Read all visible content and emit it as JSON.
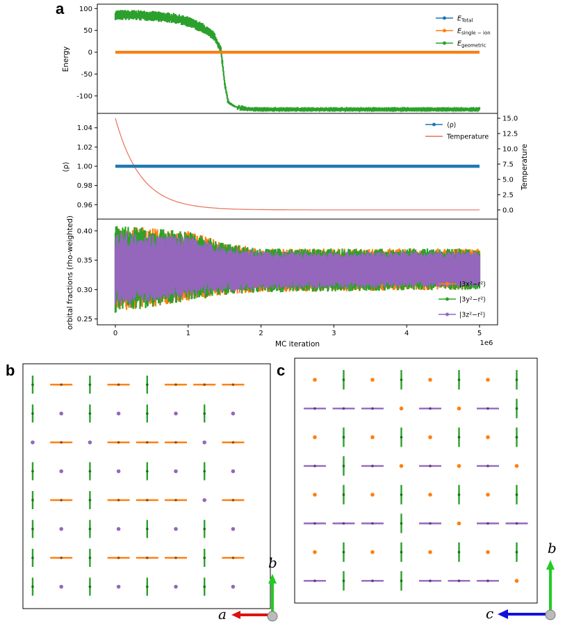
{
  "colors": {
    "total": "#1f77b4",
    "single_ion": "#ff7f0e",
    "geometric": "#2ca02c",
    "purple": "#9467bd",
    "temperature": "#e8705a",
    "axis_red": "#dd1111",
    "axis_green": "#22cc22",
    "axis_blue": "#1111dd"
  },
  "panels": {
    "a": "a",
    "b": "b",
    "c": "c"
  },
  "chart_data": [
    {
      "id": "energy",
      "type": "line",
      "ylabel": "Energy",
      "xlim": [
        0,
        5000000
      ],
      "ylim": [
        -140,
        110
      ],
      "yticks": [
        100,
        50,
        0,
        -50,
        -100
      ],
      "legend": "top-right",
      "series": [
        {
          "name": "E_Total",
          "label_main": "E",
          "label_sub": "Total",
          "color": "#1f77b4",
          "values": "constant 0"
        },
        {
          "name": "E_single-ion",
          "label_main": "E",
          "label_sub": "single − ion",
          "color": "#ff7f0e",
          "y": 0
        },
        {
          "name": "E_geometric",
          "label_main": "E",
          "label_sub": "geometric",
          "color": "#2ca02c",
          "x": [
            0,
            250000,
            500000,
            800000,
            1000000,
            1200000,
            1350000,
            1450000,
            1500000,
            1550000,
            1650000,
            1800000,
            2000000,
            5000000
          ],
          "y_mean": [
            85,
            85,
            83,
            78,
            70,
            55,
            38,
            5,
            -70,
            -115,
            -125,
            -130,
            -131,
            -131
          ],
          "y_band": [
            12,
            12,
            12,
            12,
            12,
            12,
            10,
            8,
            6,
            4,
            2,
            1,
            1,
            1
          ]
        }
      ]
    },
    {
      "id": "rho",
      "type": "line",
      "ylabel": "⟨ρ⟩",
      "ylabel2": "Temperature",
      "xlim": [
        0,
        5000000
      ],
      "ylim": [
        0.945,
        1.055
      ],
      "yticks": [
        1.04,
        1.02,
        1.0,
        0.98,
        0.96
      ],
      "ylim2": [
        -1.5,
        15.8
      ],
      "yticks2": [
        15.0,
        12.5,
        10.0,
        7.5,
        5.0,
        2.5,
        0.0
      ],
      "legend": "top-right",
      "series": [
        {
          "name": "⟨ρ⟩",
          "color": "#1f77b4",
          "y": 1.0
        },
        {
          "name": "Temperature",
          "color": "#e8705a",
          "T0": 15,
          "decay_length": 350000
        }
      ]
    },
    {
      "id": "orbitals",
      "type": "line",
      "xlabel": "MC iteration",
      "ylabel": "orbital fractions (rho-weighted)",
      "offset_text": "1e6",
      "xlim": [
        0,
        5000000
      ],
      "xticks": [
        0,
        1,
        2,
        3,
        4,
        5
      ],
      "ylim": [
        0.24,
        0.42
      ],
      "yticks": [
        0.4,
        0.35,
        0.3,
        0.25
      ],
      "legend": "right",
      "series": [
        {
          "name": "|3x²−r²⟩",
          "color": "#ff7f0e"
        },
        {
          "name": "|3y²−r²⟩",
          "color": "#2ca02c"
        },
        {
          "name": "|3z²−r²⟩",
          "color": "#9467bd"
        }
      ],
      "band": {
        "x": [
          0,
          1000000,
          1500000,
          2000000,
          5000000
        ],
        "low": [
          0.26,
          0.28,
          0.29,
          0.295,
          0.3
        ],
        "high": [
          0.41,
          0.4,
          0.38,
          0.37,
          0.37
        ]
      }
    }
  ],
  "lattice_b": {
    "rows": [
      "VHVHVHHH",
      "VPVPVPVP",
      "PHPHHHPH",
      "VPVPVPVP",
      "VHVHHHPH",
      "VPVPVPVP",
      "VHVHHHVH",
      "VPVPVPVP"
    ],
    "axes": {
      "horizontal": "a",
      "vertical": "b"
    }
  },
  "lattice_c": {
    "rows": [
      "OVOVOVOV",
      "PPPOPOPV",
      "OVOVOVOV",
      "PVPOPOPO",
      "OVOVOVOV",
      "PPPVPOPP",
      "OVOVOVOV",
      "PVPVPPPO"
    ],
    "axes": {
      "horizontal": "c",
      "vertical": "b"
    }
  }
}
